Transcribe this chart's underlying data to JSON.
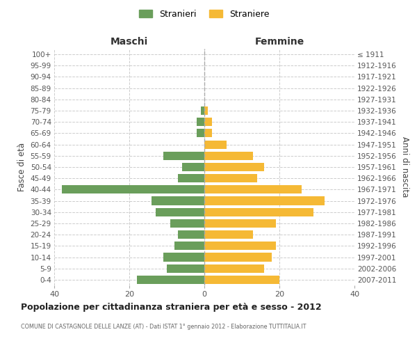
{
  "age_groups": [
    "0-4",
    "5-9",
    "10-14",
    "15-19",
    "20-24",
    "25-29",
    "30-34",
    "35-39",
    "40-44",
    "45-49",
    "50-54",
    "55-59",
    "60-64",
    "65-69",
    "70-74",
    "75-79",
    "80-84",
    "85-89",
    "90-94",
    "95-99",
    "100+"
  ],
  "birth_years": [
    "2007-2011",
    "2002-2006",
    "1997-2001",
    "1992-1996",
    "1987-1991",
    "1982-1986",
    "1977-1981",
    "1972-1976",
    "1967-1971",
    "1962-1966",
    "1957-1961",
    "1952-1956",
    "1947-1951",
    "1942-1946",
    "1937-1941",
    "1932-1936",
    "1927-1931",
    "1922-1926",
    "1917-1921",
    "1912-1916",
    "≤ 1911"
  ],
  "maschi": [
    18,
    10,
    11,
    8,
    7,
    9,
    13,
    14,
    38,
    7,
    6,
    11,
    0,
    2,
    2,
    1,
    0,
    0,
    0,
    0,
    0
  ],
  "femmine": [
    20,
    16,
    18,
    19,
    13,
    19,
    29,
    32,
    26,
    14,
    16,
    13,
    6,
    2,
    2,
    1,
    0,
    0,
    0,
    0,
    0
  ],
  "maschi_color": "#6a9e5b",
  "femmine_color": "#f5b935",
  "background_color": "#ffffff",
  "grid_color": "#cccccc",
  "title": "Popolazione per cittadinanza straniera per età e sesso - 2012",
  "subtitle": "COMUNE DI CASTAGNOLE DELLE LANZE (AT) - Dati ISTAT 1° gennaio 2012 - Elaborazione TUTTITALIA.IT",
  "xlabel_left": "Maschi",
  "xlabel_right": "Femmine",
  "ylabel_left": "Fasce di età",
  "ylabel_right": "Anni di nascita",
  "legend_stranieri": "Stranieri",
  "legend_straniere": "Straniere",
  "xlim": 40,
  "bar_height": 0.75
}
